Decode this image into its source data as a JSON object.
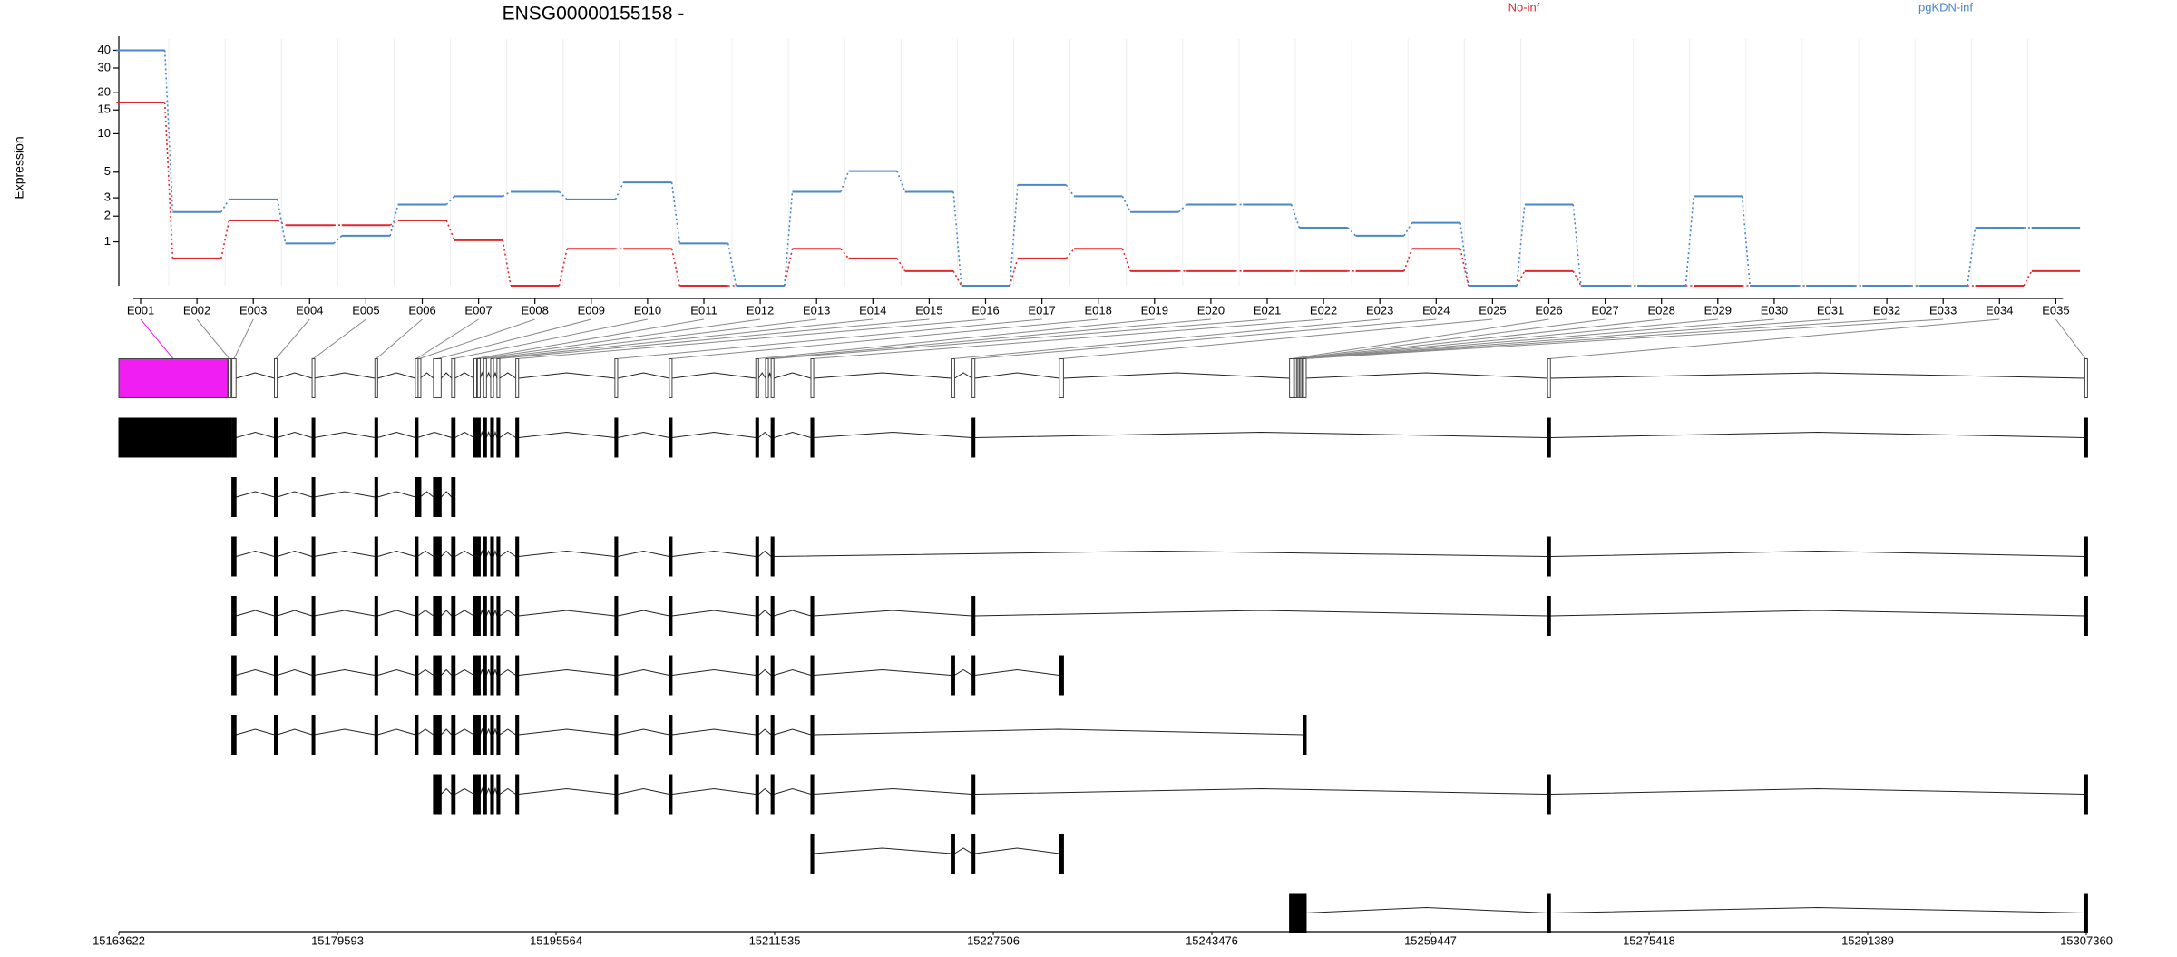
{
  "chart_data": [
    {
      "type": "line",
      "title": "ENSG00000155158 -",
      "y_label": "Expression",
      "yscale": "log1p",
      "ylim": [
        0,
        48
      ],
      "yticks": [
        1,
        2,
        3,
        5,
        10,
        15,
        20,
        30,
        40
      ],
      "grid": true,
      "categories": [
        "E001",
        "E002",
        "E003",
        "E004",
        "E005",
        "E006",
        "E007",
        "E008",
        "E009",
        "E010",
        "E011",
        "E012",
        "E013",
        "E014",
        "E015",
        "E016",
        "E017",
        "E018",
        "E019",
        "E020",
        "E021",
        "E022",
        "E023",
        "E024",
        "E025",
        "E026",
        "E027",
        "E028",
        "E029",
        "E030",
        "E031",
        "E032",
        "E033",
        "E034",
        "E035"
      ],
      "series": [
        {
          "name": "No-inf",
          "color": "#e0282e",
          "values": [
            17,
            0.54,
            1.8,
            1.6,
            1.6,
            1.8,
            1.05,
            0,
            0.79,
            0.79,
            0,
            0,
            0.79,
            0.54,
            0.26,
            0,
            0.54,
            0.79,
            0.26,
            0.26,
            0.26,
            0.26,
            0.26,
            0.79,
            0,
            0.26,
            0,
            0,
            0,
            0,
            0,
            0,
            0,
            0,
            0.26
          ]
        },
        {
          "name": "pgKDN-inf",
          "color": "#4a86c8",
          "values": [
            40,
            2.2,
            2.9,
            0.95,
            1.2,
            2.6,
            3.1,
            3.4,
            2.9,
            4.1,
            0.95,
            0,
            3.4,
            5.1,
            3.4,
            0,
            3.9,
            3.1,
            2.2,
            2.6,
            2.6,
            1.5,
            1.2,
            1.7,
            0,
            2.6,
            0,
            0,
            3.1,
            0,
            0,
            0,
            0,
            1.5,
            1.5
          ]
        }
      ]
    },
    {
      "type": "gene_model",
      "xlim": [
        15163622,
        15307360
      ],
      "xticks": [
        15163622,
        15179593,
        15195564,
        15211535,
        15227506,
        15243476,
        15259447,
        15275418,
        15291389,
        15307360
      ],
      "highlight": [
        0
      ],
      "highlight_color": "#f01ef0",
      "exons": [
        [
          15163622,
          15171573
        ],
        [
          15171624,
          15171777
        ],
        [
          15171879,
          15172185
        ],
        [
          15174988,
          15175192
        ],
        [
          15177741,
          15177894
        ],
        [
          15182328,
          15182532
        ],
        [
          15185284,
          15185437
        ],
        [
          15185488,
          15185641
        ],
        [
          15186610,
          15187170
        ],
        [
          15187935,
          15188190
        ],
        [
          15189566,
          15189719
        ],
        [
          15189821,
          15190025
        ],
        [
          15190279,
          15190483
        ],
        [
          15190789,
          15190993
        ],
        [
          15191248,
          15191452
        ],
        [
          15192624,
          15192828
        ],
        [
          15199862,
          15200066
        ],
        [
          15203837,
          15204041
        ],
        [
          15210158,
          15210362
        ],
        [
          15210871,
          15211075
        ],
        [
          15211279,
          15211483
        ],
        [
          15214184,
          15214388
        ],
        [
          15224429,
          15224684
        ],
        [
          15225958,
          15226162
        ],
        [
          15232330,
          15232636
        ],
        [
          15249150,
          15249456
        ],
        [
          15249507,
          15249609
        ],
        [
          15249659,
          15249741
        ],
        [
          15249761,
          15249843
        ],
        [
          15249863,
          15249945
        ],
        [
          15249965,
          15250047
        ],
        [
          15250067,
          15250149
        ],
        [
          15250168,
          15250270
        ],
        [
          15268009,
          15268213
        ],
        [
          15307255,
          15307360
        ]
      ],
      "transcripts": [
        [
          0,
          1,
          2,
          3,
          4,
          5,
          6,
          9,
          10,
          11,
          12,
          13,
          14,
          15,
          16,
          17,
          18,
          20,
          21,
          23,
          33,
          34
        ],
        [
          2,
          3,
          4,
          5,
          6,
          7,
          8,
          9
        ],
        [
          2,
          3,
          4,
          5,
          6,
          8,
          9,
          10,
          11,
          12,
          13,
          14,
          15,
          16,
          17,
          18,
          20,
          33,
          34
        ],
        [
          2,
          3,
          4,
          5,
          6,
          8,
          9,
          10,
          11,
          12,
          13,
          14,
          15,
          16,
          17,
          18,
          20,
          21,
          23,
          33,
          34
        ],
        [
          2,
          3,
          4,
          5,
          6,
          8,
          9,
          10,
          11,
          12,
          13,
          14,
          15,
          16,
          17,
          18,
          20,
          21,
          22,
          23,
          24
        ],
        [
          2,
          3,
          4,
          5,
          6,
          8,
          9,
          10,
          11,
          12,
          13,
          14,
          15,
          16,
          17,
          18,
          20,
          21,
          32
        ],
        [
          8,
          9,
          10,
          11,
          12,
          13,
          14,
          15,
          16,
          17,
          18,
          20,
          21,
          23,
          33,
          34
        ],
        [
          21,
          22,
          23,
          24
        ],
        [
          25,
          26,
          27,
          28,
          29,
          30,
          31,
          32,
          33,
          34
        ]
      ]
    }
  ]
}
